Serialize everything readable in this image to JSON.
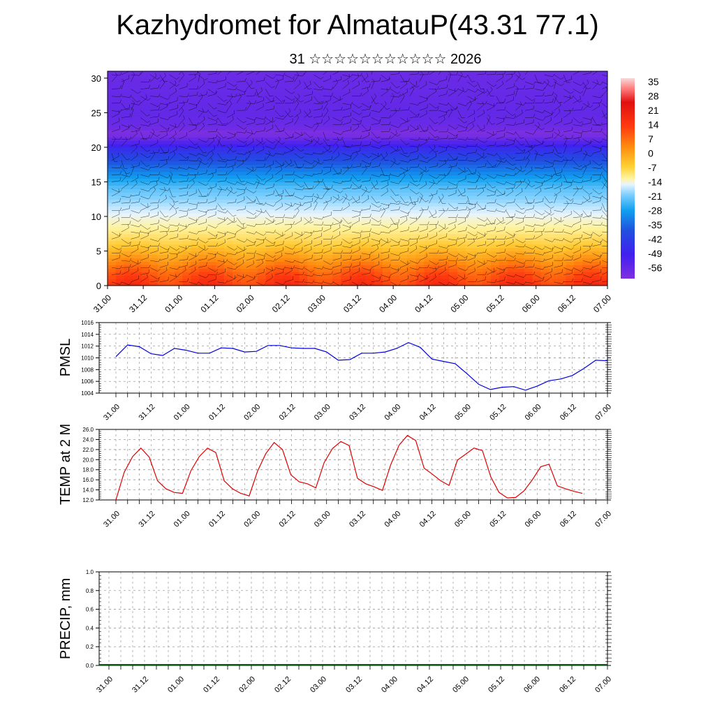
{
  "header": {
    "title": "Kazhydromet for AlmatauP(43.31 77.1)",
    "subtitle": "31 ☆☆☆☆☆☆☆☆☆☆☆ 2026"
  },
  "colors": {
    "pmsl_line": "#0000e0",
    "temp_line": "#e00000",
    "precip_baseline": "#0a5a1a",
    "barbs": "#000000"
  },
  "time_labels": [
    "31.00",
    "31.12",
    "01.00",
    "01.12",
    "02.00",
    "02.12",
    "03.00",
    "03.12",
    "04.00",
    "04.12",
    "05.00",
    "05.12",
    "06.00",
    "06.12",
    "07.00"
  ],
  "chart_data": [
    {
      "type": "heatmap",
      "title": "",
      "xlabel": "",
      "ylabel": "",
      "x": [
        "31.00",
        "31.12",
        "01.00",
        "01.12",
        "02.00",
        "02.12",
        "03.00",
        "03.12",
        "04.00",
        "04.12",
        "05.00",
        "05.12",
        "06.00",
        "06.12",
        "07.00"
      ],
      "ylim": [
        0,
        31
      ],
      "yticks": [
        0,
        5,
        10,
        15,
        20,
        25,
        30
      ],
      "colorbar_labels": [
        "35",
        "28",
        "21",
        "14",
        "7",
        "0",
        "-7",
        "-14",
        "-21",
        "-28",
        "-35",
        "-42",
        "-49",
        "-56"
      ],
      "colorbar_range": [
        -60,
        38
      ],
      "temperature_profile": {
        "heights": [
          0,
          2,
          4,
          6,
          8,
          10,
          12,
          14,
          16,
          18,
          20,
          21,
          22,
          23,
          25,
          28,
          31
        ],
        "values": [
          22,
          18,
          12,
          6,
          1,
          -3,
          -8,
          -13,
          -22,
          -32,
          -42,
          -52,
          -60,
          -55,
          -53,
          -54,
          -55
        ]
      },
      "wind_barbs": true
    },
    {
      "type": "line",
      "ylabel": "PMSL",
      "ylim": [
        1004,
        1016
      ],
      "yticks": [
        "1004",
        "1006",
        "1008",
        "1010",
        "1012",
        "1014",
        "1016"
      ],
      "series": [
        {
          "x": [
            0,
            1,
            2,
            3,
            4,
            5,
            6,
            7,
            8,
            9,
            10,
            11,
            12,
            13,
            14,
            15,
            16,
            17,
            18,
            19,
            20,
            21,
            22,
            23,
            24,
            25,
            26,
            27,
            28,
            29,
            30,
            31,
            32,
            33,
            34,
            35,
            36,
            37,
            38,
            39,
            40,
            41,
            42
          ],
          "values": [
            1010.2,
            1012.2,
            1011.9,
            1010.7,
            1010.4,
            1011.6,
            1011.3,
            1010.8,
            1010.8,
            1011.7,
            1011.6,
            1011.0,
            1011.1,
            1012.1,
            1012.1,
            1011.7,
            1011.6,
            1011.6,
            1011.0,
            1009.6,
            1009.7,
            1010.8,
            1010.8,
            1011.0,
            1011.6,
            1012.6,
            1011.8,
            1009.8,
            1009.4,
            1009.0,
            1007.3,
            1005.5,
            1004.6,
            1005.0,
            1005.1,
            1004.5,
            1005.2,
            1006.1,
            1006.4,
            1007.0,
            1008.2,
            1009.6,
            1009.5
          ]
        }
      ]
    },
    {
      "type": "line",
      "ylabel": "TEMP at 2 M",
      "ylim": [
        12.0,
        26.0
      ],
      "yticks": [
        "12.0",
        "14.0",
        "16.0",
        "18.0",
        "20.0",
        "22.0",
        "24.0",
        "26.0"
      ],
      "series": [
        {
          "values": [
            12.0,
            17.5,
            20.6,
            22.3,
            20.5,
            15.8,
            14.2,
            13.5,
            13.3,
            17.8,
            20.6,
            22.3,
            21.4,
            15.8,
            14.2,
            13.3,
            12.8,
            17.7,
            21.2,
            23.4,
            22.0,
            17.0,
            15.6,
            15.2,
            14.4,
            19.4,
            22.2,
            23.6,
            22.8,
            16.3,
            15.2,
            14.6,
            13.9,
            19.0,
            22.9,
            24.8,
            23.8,
            18.3,
            17.1,
            15.8,
            14.9,
            19.9,
            21.1,
            22.3,
            21.8,
            16.6,
            13.5,
            12.4,
            12.5,
            13.8,
            16.0,
            18.6,
            19.1,
            14.8,
            14.2,
            13.7,
            13.3
          ]
        }
      ]
    },
    {
      "type": "line",
      "ylabel": "PRECIP, mm",
      "ylim": [
        0.0,
        1.0
      ],
      "yticks": [
        "0.0",
        "0.2",
        "0.4",
        "0.6",
        "0.8",
        "1.0"
      ],
      "series": [
        {
          "values": [
            0,
            0,
            0,
            0,
            0,
            0,
            0,
            0,
            0,
            0,
            0,
            0,
            0,
            0,
            0
          ]
        }
      ]
    }
  ]
}
